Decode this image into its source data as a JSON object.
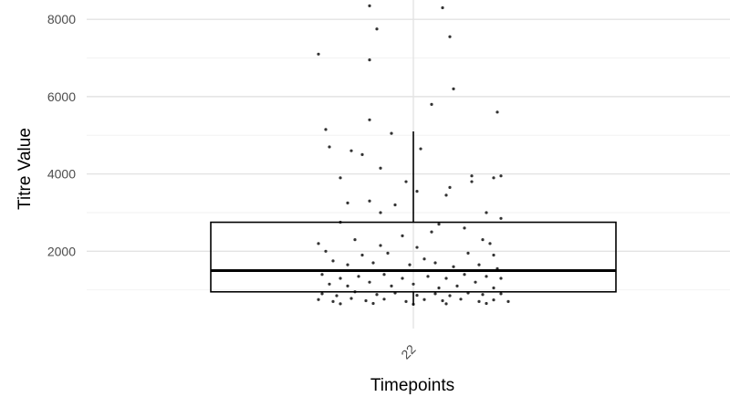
{
  "chart_data": {
    "type": "box",
    "xlabel": "Timepoints",
    "ylabel": "Titre Value",
    "categories": [
      "22"
    ],
    "ylim": [
      0,
      8500
    ],
    "yticks": [
      2000,
      4000,
      6000,
      8000
    ],
    "grid": true,
    "box": {
      "category": "22",
      "lower_whisker": 600,
      "q1": 950,
      "median": 1500,
      "q3": 2750,
      "upper_whisker": 5100
    },
    "jitter_points": [
      {
        "x": -0.26,
        "y": 7100
      },
      {
        "x": -0.12,
        "y": 8350
      },
      {
        "x": -0.1,
        "y": 7750
      },
      {
        "x": -0.12,
        "y": 6950
      },
      {
        "x": 0.08,
        "y": 8300
      },
      {
        "x": 0.1,
        "y": 7550
      },
      {
        "x": 0.11,
        "y": 6200
      },
      {
        "x": 0.05,
        "y": 5800
      },
      {
        "x": 0.23,
        "y": 5600
      },
      {
        "x": -0.24,
        "y": 5150
      },
      {
        "x": -0.12,
        "y": 5400
      },
      {
        "x": -0.06,
        "y": 5050
      },
      {
        "x": 0.02,
        "y": 4650
      },
      {
        "x": -0.23,
        "y": 4700
      },
      {
        "x": -0.17,
        "y": 4600
      },
      {
        "x": -0.14,
        "y": 4500
      },
      {
        "x": -0.09,
        "y": 4150
      },
      {
        "x": -0.02,
        "y": 3800
      },
      {
        "x": -0.2,
        "y": 3900
      },
      {
        "x": 0.16,
        "y": 3950
      },
      {
        "x": 0.24,
        "y": 3950
      },
      {
        "x": 0.22,
        "y": 3900
      },
      {
        "x": 0.1,
        "y": 3650
      },
      {
        "x": 0.16,
        "y": 3800
      },
      {
        "x": 0.01,
        "y": 3550
      },
      {
        "x": -0.12,
        "y": 3300
      },
      {
        "x": -0.18,
        "y": 3250
      },
      {
        "x": -0.05,
        "y": 3200
      },
      {
        "x": 0.09,
        "y": 3450
      },
      {
        "x": 0.2,
        "y": 3000
      },
      {
        "x": 0.24,
        "y": 2850
      },
      {
        "x": -0.09,
        "y": 3000
      },
      {
        "x": -0.2,
        "y": 2750
      },
      {
        "x": 0.07,
        "y": 2700
      },
      {
        "x": 0.14,
        "y": 2600
      },
      {
        "x": -0.03,
        "y": 2400
      },
      {
        "x": 0.05,
        "y": 2500
      },
      {
        "x": -0.16,
        "y": 2300
      },
      {
        "x": -0.26,
        "y": 2200
      },
      {
        "x": -0.09,
        "y": 2150
      },
      {
        "x": 0.01,
        "y": 2100
      },
      {
        "x": 0.19,
        "y": 2300
      },
      {
        "x": 0.21,
        "y": 2200
      },
      {
        "x": -0.24,
        "y": 2000
      },
      {
        "x": -0.14,
        "y": 1900
      },
      {
        "x": -0.07,
        "y": 1950
      },
      {
        "x": 0.03,
        "y": 1800
      },
      {
        "x": 0.15,
        "y": 1950
      },
      {
        "x": 0.22,
        "y": 1900
      },
      {
        "x": -0.22,
        "y": 1750
      },
      {
        "x": -0.18,
        "y": 1650
      },
      {
        "x": -0.11,
        "y": 1700
      },
      {
        "x": -0.01,
        "y": 1650
      },
      {
        "x": 0.06,
        "y": 1700
      },
      {
        "x": 0.11,
        "y": 1600
      },
      {
        "x": 0.18,
        "y": 1650
      },
      {
        "x": 0.23,
        "y": 1550
      },
      {
        "x": -0.25,
        "y": 1400
      },
      {
        "x": -0.2,
        "y": 1300
      },
      {
        "x": -0.15,
        "y": 1350
      },
      {
        "x": -0.08,
        "y": 1400
      },
      {
        "x": -0.03,
        "y": 1300
      },
      {
        "x": 0.04,
        "y": 1350
      },
      {
        "x": 0.09,
        "y": 1300
      },
      {
        "x": 0.14,
        "y": 1400
      },
      {
        "x": 0.2,
        "y": 1350
      },
      {
        "x": 0.24,
        "y": 1300
      },
      {
        "x": -0.23,
        "y": 1150
      },
      {
        "x": -0.18,
        "y": 1100
      },
      {
        "x": -0.12,
        "y": 1200
      },
      {
        "x": -0.06,
        "y": 1100
      },
      {
        "x": 0.0,
        "y": 1150
      },
      {
        "x": 0.07,
        "y": 1050
      },
      {
        "x": 0.12,
        "y": 1100
      },
      {
        "x": 0.17,
        "y": 1200
      },
      {
        "x": 0.22,
        "y": 1050
      },
      {
        "x": -0.25,
        "y": 900
      },
      {
        "x": -0.21,
        "y": 850
      },
      {
        "x": -0.16,
        "y": 950
      },
      {
        "x": -0.1,
        "y": 880
      },
      {
        "x": -0.05,
        "y": 920
      },
      {
        "x": 0.01,
        "y": 860
      },
      {
        "x": 0.06,
        "y": 900
      },
      {
        "x": 0.1,
        "y": 850
      },
      {
        "x": 0.15,
        "y": 920
      },
      {
        "x": 0.19,
        "y": 880
      },
      {
        "x": 0.24,
        "y": 900
      },
      {
        "x": -0.26,
        "y": 750
      },
      {
        "x": -0.22,
        "y": 700
      },
      {
        "x": -0.17,
        "y": 780
      },
      {
        "x": -0.13,
        "y": 720
      },
      {
        "x": -0.08,
        "y": 760
      },
      {
        "x": -0.02,
        "y": 700
      },
      {
        "x": 0.03,
        "y": 750
      },
      {
        "x": 0.08,
        "y": 720
      },
      {
        "x": 0.13,
        "y": 760
      },
      {
        "x": 0.18,
        "y": 700
      },
      {
        "x": 0.22,
        "y": 740
      },
      {
        "x": 0.26,
        "y": 700
      },
      {
        "x": -0.2,
        "y": 640
      },
      {
        "x": -0.11,
        "y": 650
      },
      {
        "x": 0.0,
        "y": 630
      },
      {
        "x": 0.09,
        "y": 640
      },
      {
        "x": 0.2,
        "y": 650
      }
    ]
  }
}
